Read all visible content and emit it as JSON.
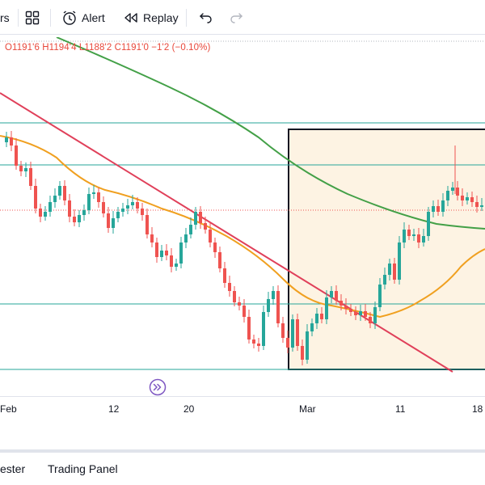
{
  "toolbar": {
    "indicators_partial": "rs",
    "alert_label": "Alert",
    "replay_label": "Replay"
  },
  "ohlc": {
    "o_label": "O",
    "o_value": "1191'6",
    "h_label": "H",
    "h_value": "1194'4",
    "l_label": "L",
    "l_value": "1188'2",
    "c_label": "C",
    "c_value": "1191'0",
    "change": "−1'2 (−0.10%)"
  },
  "x_axis": {
    "labels": [
      "Feb",
      "12",
      "20",
      "Mar",
      "11",
      "18"
    ]
  },
  "bottom_panel": {
    "tab1": "ester",
    "tab2": "Trading Panel"
  },
  "colors": {
    "up": "#26a69a",
    "down": "#ef5350",
    "ma_green": "#43a047",
    "ma_orange": "#f0a020",
    "trend_red": "#e0405a",
    "hline": "#26a69a",
    "box_fill": "#fdf3e3",
    "goto_purple": "#7e57c2"
  },
  "icons": [
    "layout-grid-icon",
    "alert-clock-icon",
    "replay-icon",
    "undo-icon",
    "redo-icon",
    "go-to-realtime-icon"
  ]
}
